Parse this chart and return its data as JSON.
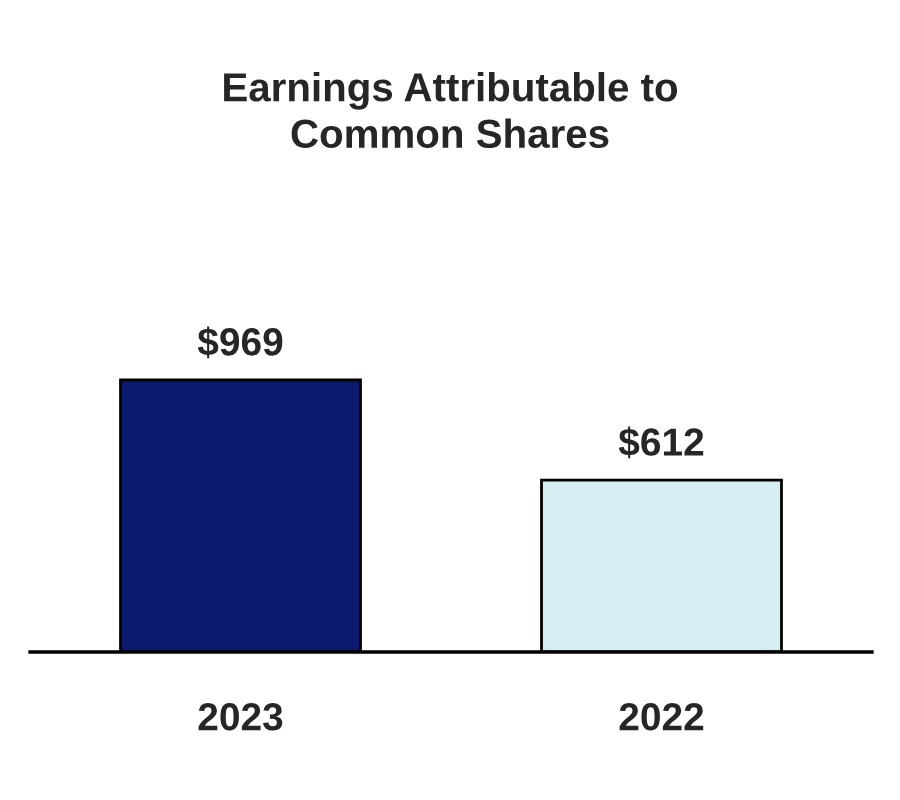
{
  "chart_data": {
    "type": "bar",
    "title": "Earnings Attributable to\nCommon Shares",
    "categories": [
      "2023",
      "2022"
    ],
    "values": [
      969,
      612
    ],
    "colors": [
      "#0b1a6e",
      "#d5eff3"
    ],
    "value_labels": [
      "$969",
      "$612"
    ],
    "grid": false,
    "legend": false
  }
}
